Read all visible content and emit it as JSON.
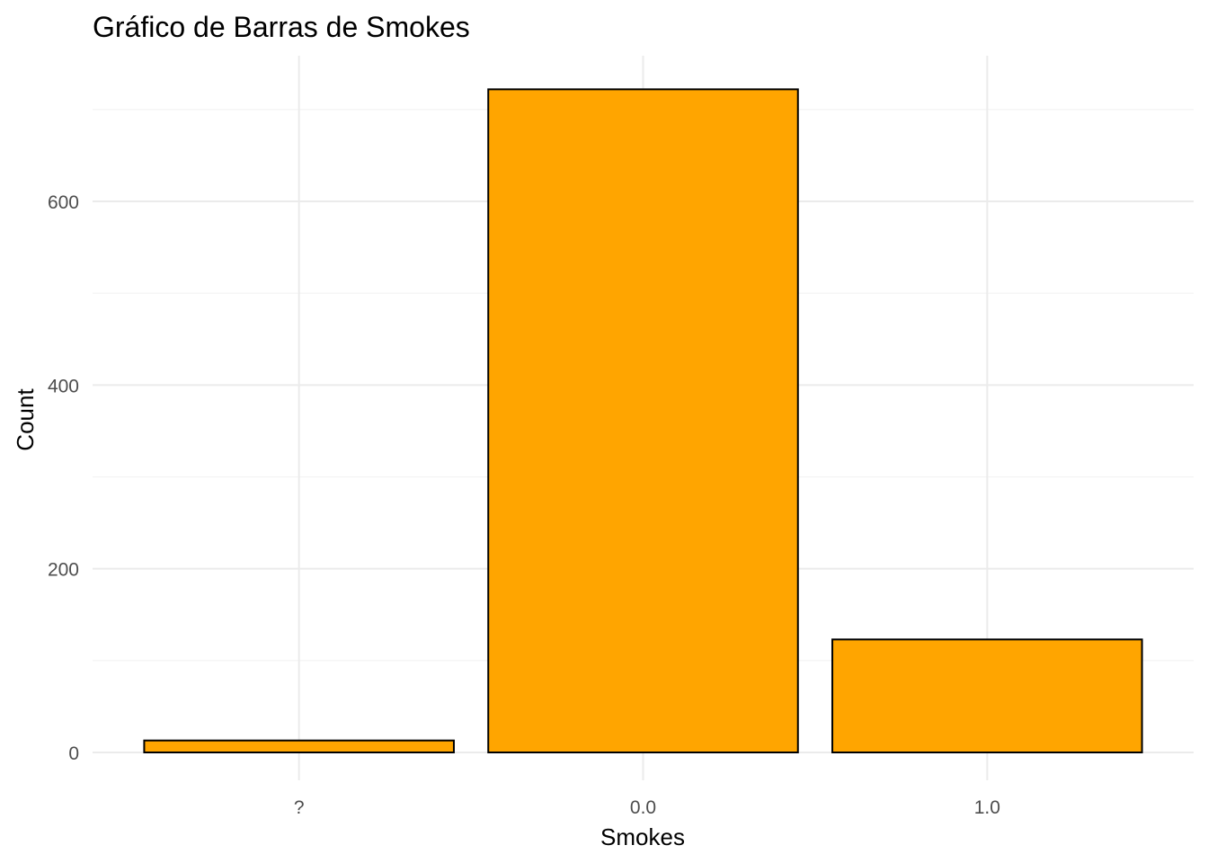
{
  "chart_data": {
    "type": "bar",
    "title": "Gráfico de Barras de Smokes",
    "xlabel": "Smokes",
    "ylabel": "Count",
    "categories": [
      "?",
      "0.0",
      "1.0"
    ],
    "values": [
      13,
      722,
      123
    ],
    "ylim": [
      0,
      758
    ],
    "yticks": [
      0,
      200,
      400,
      600
    ],
    "grid": true,
    "legend": "none",
    "bar_color": "#FFA500",
    "bar_outline": "#000000",
    "grid_color": "#EBEBEB"
  }
}
